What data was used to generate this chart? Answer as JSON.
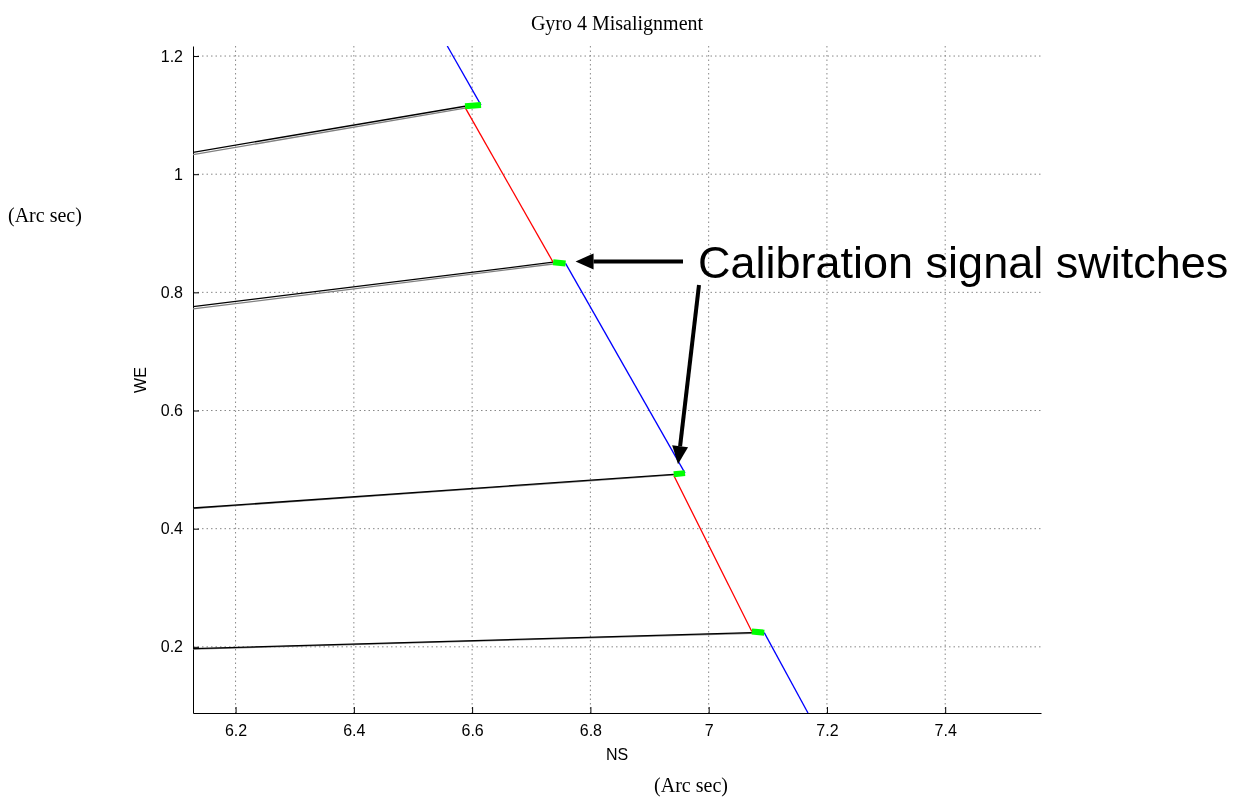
{
  "chart_data": {
    "type": "line",
    "title": "Gyro 4 Misalignment",
    "xlabel": "NS",
    "ylabel": "WE",
    "annotations": [
      "Calibration signal switches",
      "(Arc sec)",
      "(Arc sec)"
    ],
    "xlim": [
      6.128,
      7.562
    ],
    "ylim": [
      0.088,
      1.217
    ],
    "xticks": [
      6.2,
      6.4,
      6.6,
      6.8,
      7,
      7.2,
      7.4
    ],
    "yticks": [
      0.2,
      0.4,
      0.6,
      0.8,
      1,
      1.2
    ],
    "grid": true,
    "line_style": "solid",
    "series": [
      {
        "color": "#808080",
        "x": [
          6.128,
          6.588
        ],
        "values": [
          1.033,
          1.112
        ]
      },
      {
        "color": "#808080",
        "x": [
          6.128,
          6.737
        ],
        "values": [
          0.772,
          0.848
        ]
      },
      {
        "color": "#808080",
        "x": [
          6.128,
          6.941
        ],
        "values": [
          0.434,
          0.491
        ]
      },
      {
        "color": "#808080",
        "x": [
          6.128,
          7.073
        ],
        "values": [
          0.196,
          0.223
        ]
      },
      {
        "color": "#000000",
        "x": [
          6.128,
          6.588
        ],
        "values": [
          1.037,
          1.115
        ]
      },
      {
        "color": "#000000",
        "x": [
          6.128,
          6.737
        ],
        "values": [
          0.776,
          0.851
        ]
      },
      {
        "color": "#000000",
        "x": [
          6.128,
          6.941
        ],
        "values": [
          0.435,
          0.492
        ]
      },
      {
        "color": "#000000",
        "x": [
          6.128,
          7.073
        ],
        "values": [
          0.197,
          0.224
        ]
      },
      {
        "color": "#0000ff",
        "x": [
          6.558,
          6.615
        ],
        "values": [
          1.217,
          1.117
        ]
      },
      {
        "color": "#0000ff",
        "x": [
          6.758,
          6.96
        ],
        "values": [
          0.849,
          0.494
        ]
      },
      {
        "color": "#0000ff",
        "x": [
          7.094,
          7.168
        ],
        "values": [
          0.224,
          0.088
        ]
      },
      {
        "color": "#ff0000",
        "x": [
          6.588,
          6.737
        ],
        "values": [
          1.113,
          0.851
        ]
      },
      {
        "color": "#ff0000",
        "x": [
          6.941,
          7.073
        ],
        "values": [
          0.49,
          0.226
        ]
      },
      {
        "color": "#00ff00",
        "x": [
          6.588,
          6.615
        ],
        "values": [
          1.115,
          1.117
        ]
      },
      {
        "color": "#00ff00",
        "x": [
          6.737,
          6.758
        ],
        "values": [
          0.851,
          0.849
        ]
      },
      {
        "color": "#00ff00",
        "x": [
          6.941,
          6.96
        ],
        "values": [
          0.492,
          0.494
        ]
      },
      {
        "color": "#00ff00",
        "x": [
          7.073,
          7.094
        ],
        "values": [
          0.226,
          0.224
        ]
      }
    ]
  }
}
